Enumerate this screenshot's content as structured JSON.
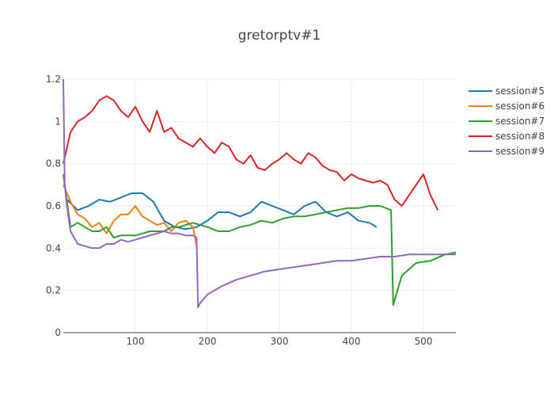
{
  "chart_data": {
    "type": "line",
    "title": "gretorptv#1",
    "xlabel": "",
    "ylabel": "",
    "xlim": [
      0,
      545
    ],
    "ylim": [
      0,
      1.2
    ],
    "x_ticks": [
      100,
      200,
      300,
      400,
      500
    ],
    "y_ticks": [
      0,
      0.2,
      0.4,
      0.6,
      0.8,
      1,
      1.2
    ],
    "y_tick_labels": [
      "0",
      "0.2",
      "0.4",
      "0.6",
      "0.8",
      "1",
      "1.2"
    ],
    "grid": true,
    "legend_position": "top-right",
    "series": [
      {
        "name": "session#5",
        "color": "#1f77b4",
        "x": [
          5,
          20,
          35,
          50,
          65,
          80,
          95,
          110,
          125,
          140,
          155,
          170,
          185,
          200,
          215,
          230,
          245,
          260,
          275,
          290,
          305,
          320,
          335,
          350,
          365,
          380,
          395,
          410,
          425,
          435
        ],
        "y": [
          0.63,
          0.58,
          0.6,
          0.63,
          0.62,
          0.64,
          0.66,
          0.66,
          0.62,
          0.53,
          0.5,
          0.49,
          0.5,
          0.53,
          0.57,
          0.57,
          0.55,
          0.57,
          0.62,
          0.6,
          0.58,
          0.56,
          0.6,
          0.62,
          0.57,
          0.55,
          0.57,
          0.53,
          0.52,
          0.5
        ]
      },
      {
        "name": "session#6",
        "color": "#ff7f0e",
        "x": [
          0,
          10,
          20,
          30,
          40,
          50,
          60,
          70,
          80,
          90,
          100,
          110,
          120,
          130,
          140,
          150,
          160,
          170,
          180,
          185
        ],
        "y": [
          0.7,
          0.62,
          0.56,
          0.54,
          0.5,
          0.52,
          0.47,
          0.53,
          0.56,
          0.56,
          0.6,
          0.55,
          0.53,
          0.51,
          0.52,
          0.48,
          0.52,
          0.53,
          0.5,
          0.41
        ]
      },
      {
        "name": "session#7",
        "color": "#2ca02c",
        "x": [
          0,
          5,
          10,
          20,
          30,
          40,
          50,
          60,
          70,
          80,
          90,
          100,
          110,
          120,
          130,
          140,
          150,
          160,
          170,
          180,
          190,
          200,
          215,
          230,
          245,
          260,
          275,
          290,
          305,
          320,
          335,
          350,
          365,
          380,
          395,
          410,
          425,
          440,
          455,
          458,
          470,
          490,
          510,
          530,
          545
        ],
        "y": [
          0.75,
          0.62,
          0.5,
          0.52,
          0.5,
          0.48,
          0.48,
          0.5,
          0.45,
          0.46,
          0.46,
          0.46,
          0.47,
          0.48,
          0.48,
          0.48,
          0.5,
          0.5,
          0.51,
          0.52,
          0.51,
          0.5,
          0.48,
          0.48,
          0.5,
          0.51,
          0.53,
          0.52,
          0.54,
          0.55,
          0.55,
          0.56,
          0.57,
          0.58,
          0.59,
          0.59,
          0.6,
          0.6,
          0.58,
          0.13,
          0.27,
          0.33,
          0.34,
          0.37,
          0.38
        ]
      },
      {
        "name": "session#8",
        "color": "#d62728",
        "x": [
          0,
          10,
          20,
          30,
          40,
          50,
          60,
          70,
          80,
          90,
          100,
          110,
          120,
          130,
          140,
          150,
          160,
          170,
          180,
          190,
          200,
          210,
          220,
          230,
          240,
          250,
          260,
          270,
          280,
          290,
          300,
          310,
          320,
          330,
          340,
          350,
          360,
          370,
          380,
          390,
          400,
          410,
          420,
          430,
          440,
          450,
          460,
          470,
          480,
          490,
          500,
          510,
          520
        ],
        "y": [
          0.8,
          0.95,
          1.0,
          1.02,
          1.05,
          1.1,
          1.12,
          1.1,
          1.05,
          1.02,
          1.07,
          1.0,
          0.95,
          1.05,
          0.95,
          0.97,
          0.92,
          0.9,
          0.88,
          0.92,
          0.88,
          0.85,
          0.9,
          0.88,
          0.82,
          0.8,
          0.84,
          0.78,
          0.77,
          0.8,
          0.82,
          0.85,
          0.82,
          0.8,
          0.85,
          0.83,
          0.79,
          0.77,
          0.76,
          0.72,
          0.75,
          0.73,
          0.72,
          0.71,
          0.72,
          0.7,
          0.63,
          0.6,
          0.65,
          0.7,
          0.75,
          0.65,
          0.58
        ]
      },
      {
        "name": "session#9",
        "color": "#9467bd",
        "x": [
          0,
          2,
          5,
          10,
          20,
          30,
          40,
          50,
          60,
          70,
          80,
          90,
          100,
          110,
          120,
          130,
          140,
          150,
          160,
          170,
          180,
          185,
          187,
          190,
          200,
          220,
          240,
          260,
          280,
          300,
          320,
          340,
          360,
          380,
          400,
          420,
          440,
          460,
          480,
          500,
          520,
          545
        ],
        "y": [
          1.2,
          0.7,
          0.6,
          0.48,
          0.42,
          0.41,
          0.4,
          0.4,
          0.42,
          0.42,
          0.44,
          0.43,
          0.44,
          0.45,
          0.46,
          0.47,
          0.48,
          0.47,
          0.47,
          0.46,
          0.46,
          0.45,
          0.12,
          0.14,
          0.18,
          0.22,
          0.25,
          0.27,
          0.29,
          0.3,
          0.31,
          0.32,
          0.33,
          0.34,
          0.34,
          0.35,
          0.36,
          0.36,
          0.37,
          0.37,
          0.37,
          0.37
        ]
      }
    ]
  }
}
